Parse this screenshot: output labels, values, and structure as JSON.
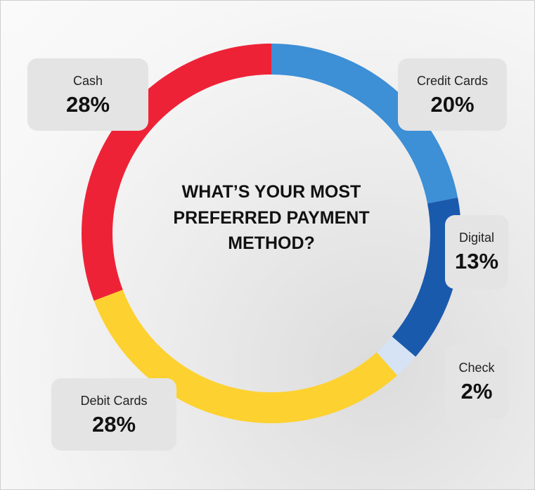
{
  "chart_data": {
    "type": "donut",
    "title": "WHAT’S YOUR MOST PREFERRED PAYMENT METHOD?",
    "categories": [
      "Credit Cards",
      "Digital",
      "Check",
      "Debit Cards",
      "Cash"
    ],
    "values": [
      20,
      13,
      2,
      28,
      28
    ],
    "value_labels": [
      "20%",
      "13%",
      "2%",
      "28%",
      "28%"
    ],
    "colors": [
      "#3d8fd6",
      "#1a5aad",
      "#d5e3f4",
      "#fdd12f",
      "#ee2237"
    ]
  }
}
